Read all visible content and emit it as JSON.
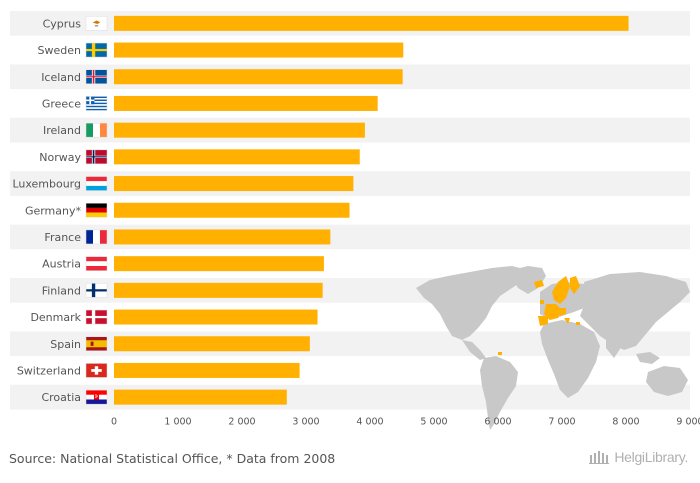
{
  "chart_data": {
    "type": "bar",
    "orientation": "horizontal",
    "categories": [
      "Cyprus",
      "Sweden",
      "Iceland",
      "Greece",
      "Ireland",
      "Norway",
      "Luxembourg",
      "Germany*",
      "France",
      "Austria",
      "Finland",
      "Denmark",
      "Spain",
      "Switzerland",
      "Croatia"
    ],
    "values": [
      8040,
      4520,
      4510,
      4120,
      3920,
      3840,
      3740,
      3680,
      3380,
      3280,
      3260,
      3180,
      3060,
      2900,
      2700
    ],
    "xlim": [
      0,
      9000
    ],
    "xticks": [
      0,
      1000,
      2000,
      3000,
      4000,
      5000,
      6000,
      7000,
      8000,
      9000
    ],
    "xtick_labels": [
      "0",
      "1 000",
      "2 000",
      "3 000",
      "4 000",
      "5 000",
      "6 000",
      "7 000",
      "8 000",
      "9 000"
    ],
    "bar_color": "#FFB000",
    "row_band_colors": [
      "#F2F2F2",
      "#FFFFFF"
    ],
    "flags": [
      "cyprus-flag-icon",
      "sweden-flag-icon",
      "iceland-flag-icon",
      "greece-flag-icon",
      "ireland-flag-icon",
      "norway-flag-icon",
      "luxembourg-flag-icon",
      "germany-flag-icon",
      "france-flag-icon",
      "austria-flag-icon",
      "finland-flag-icon",
      "denmark-flag-icon",
      "spain-flag-icon",
      "switzerland-flag-icon",
      "croatia-flag-icon"
    ],
    "title": "",
    "xlabel": "",
    "ylabel": ""
  },
  "footer": {
    "source": "Source: National Statistical Office, * Data from 2008",
    "logo": "HelgiLibrary."
  },
  "colors": {
    "map_land": "#C8C8C8",
    "map_highlight": "#FFB000",
    "text": "#555555"
  }
}
